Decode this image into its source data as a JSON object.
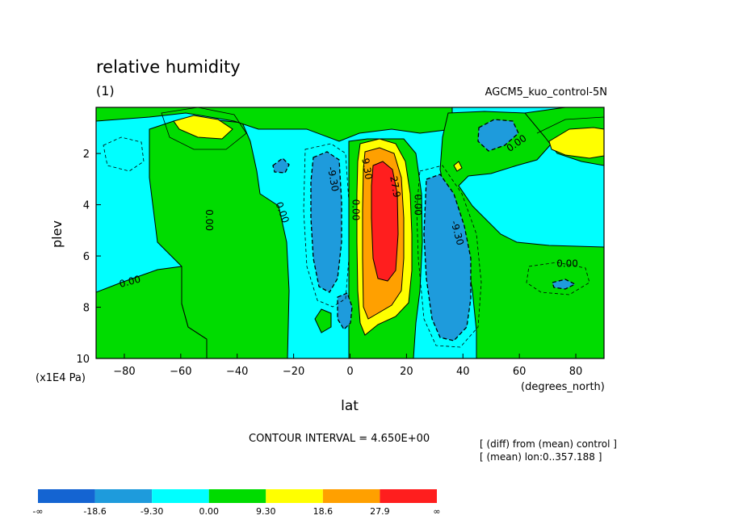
{
  "header": {
    "title": "relative humidity",
    "panel": "(1)",
    "experiment": "AGCM5_kuo_control-5N"
  },
  "notes": {
    "contour_interval": "CONTOUR INTERVAL = 4.650E+00",
    "diff_line": "[ (diff) from (mean) control ]",
    "mean_line": "[ (mean) lon:0..357.188 ]"
  },
  "chart_data": {
    "type": "heatmap",
    "title": "relative humidity",
    "xlabel": "lat",
    "xunit": "(degrees_north)",
    "ylabel": "plev",
    "yunit": "(x1E4 Pa)",
    "xlim": [
      -90,
      90
    ],
    "ylim": [
      10,
      0.2
    ],
    "x_ticks": [
      -80,
      -60,
      -40,
      -20,
      0,
      20,
      40,
      60,
      80
    ],
    "y_ticks": [
      2,
      4,
      6,
      8,
      10
    ],
    "contour_interval": 4.65,
    "contour_labels": [
      {
        "text": "0.00",
        "lat": -78,
        "plev": 7.0,
        "rot": -15
      },
      {
        "text": "0.00",
        "lat": -50,
        "plev": 4.6,
        "rot": 90
      },
      {
        "text": "0.00",
        "lat": -24,
        "plev": 4.3,
        "rot": 70
      },
      {
        "text": "-9.30",
        "lat": -6,
        "plev": 3.0,
        "rot": 80
      },
      {
        "text": "0.00",
        "lat": 2,
        "plev": 4.2,
        "rot": 90
      },
      {
        "text": "9.30",
        "lat": 6,
        "plev": 2.6,
        "rot": 80
      },
      {
        "text": "27.9",
        "lat": 16,
        "plev": 3.3,
        "rot": 80
      },
      {
        "text": "0.00",
        "lat": 24,
        "plev": 4.0,
        "rot": 90
      },
      {
        "text": "-9.30",
        "lat": 38,
        "plev": 5.1,
        "rot": 75
      },
      {
        "text": "0.00",
        "lat": 59,
        "plev": 1.6,
        "rot": -35
      },
      {
        "text": "0.00",
        "lat": 77,
        "plev": 6.3,
        "rot": 0
      }
    ],
    "legend": {
      "labels": [
        "-∞",
        "-18.6",
        "-9.30",
        "0.00",
        "9.30",
        "18.6",
        "27.9",
        "∞"
      ],
      "colors": [
        "#1464d2",
        "#1e9bdc",
        "#00ffff",
        "#00dc00",
        "#ffff00",
        "#ffa000",
        "#ff1e1e"
      ]
    }
  }
}
